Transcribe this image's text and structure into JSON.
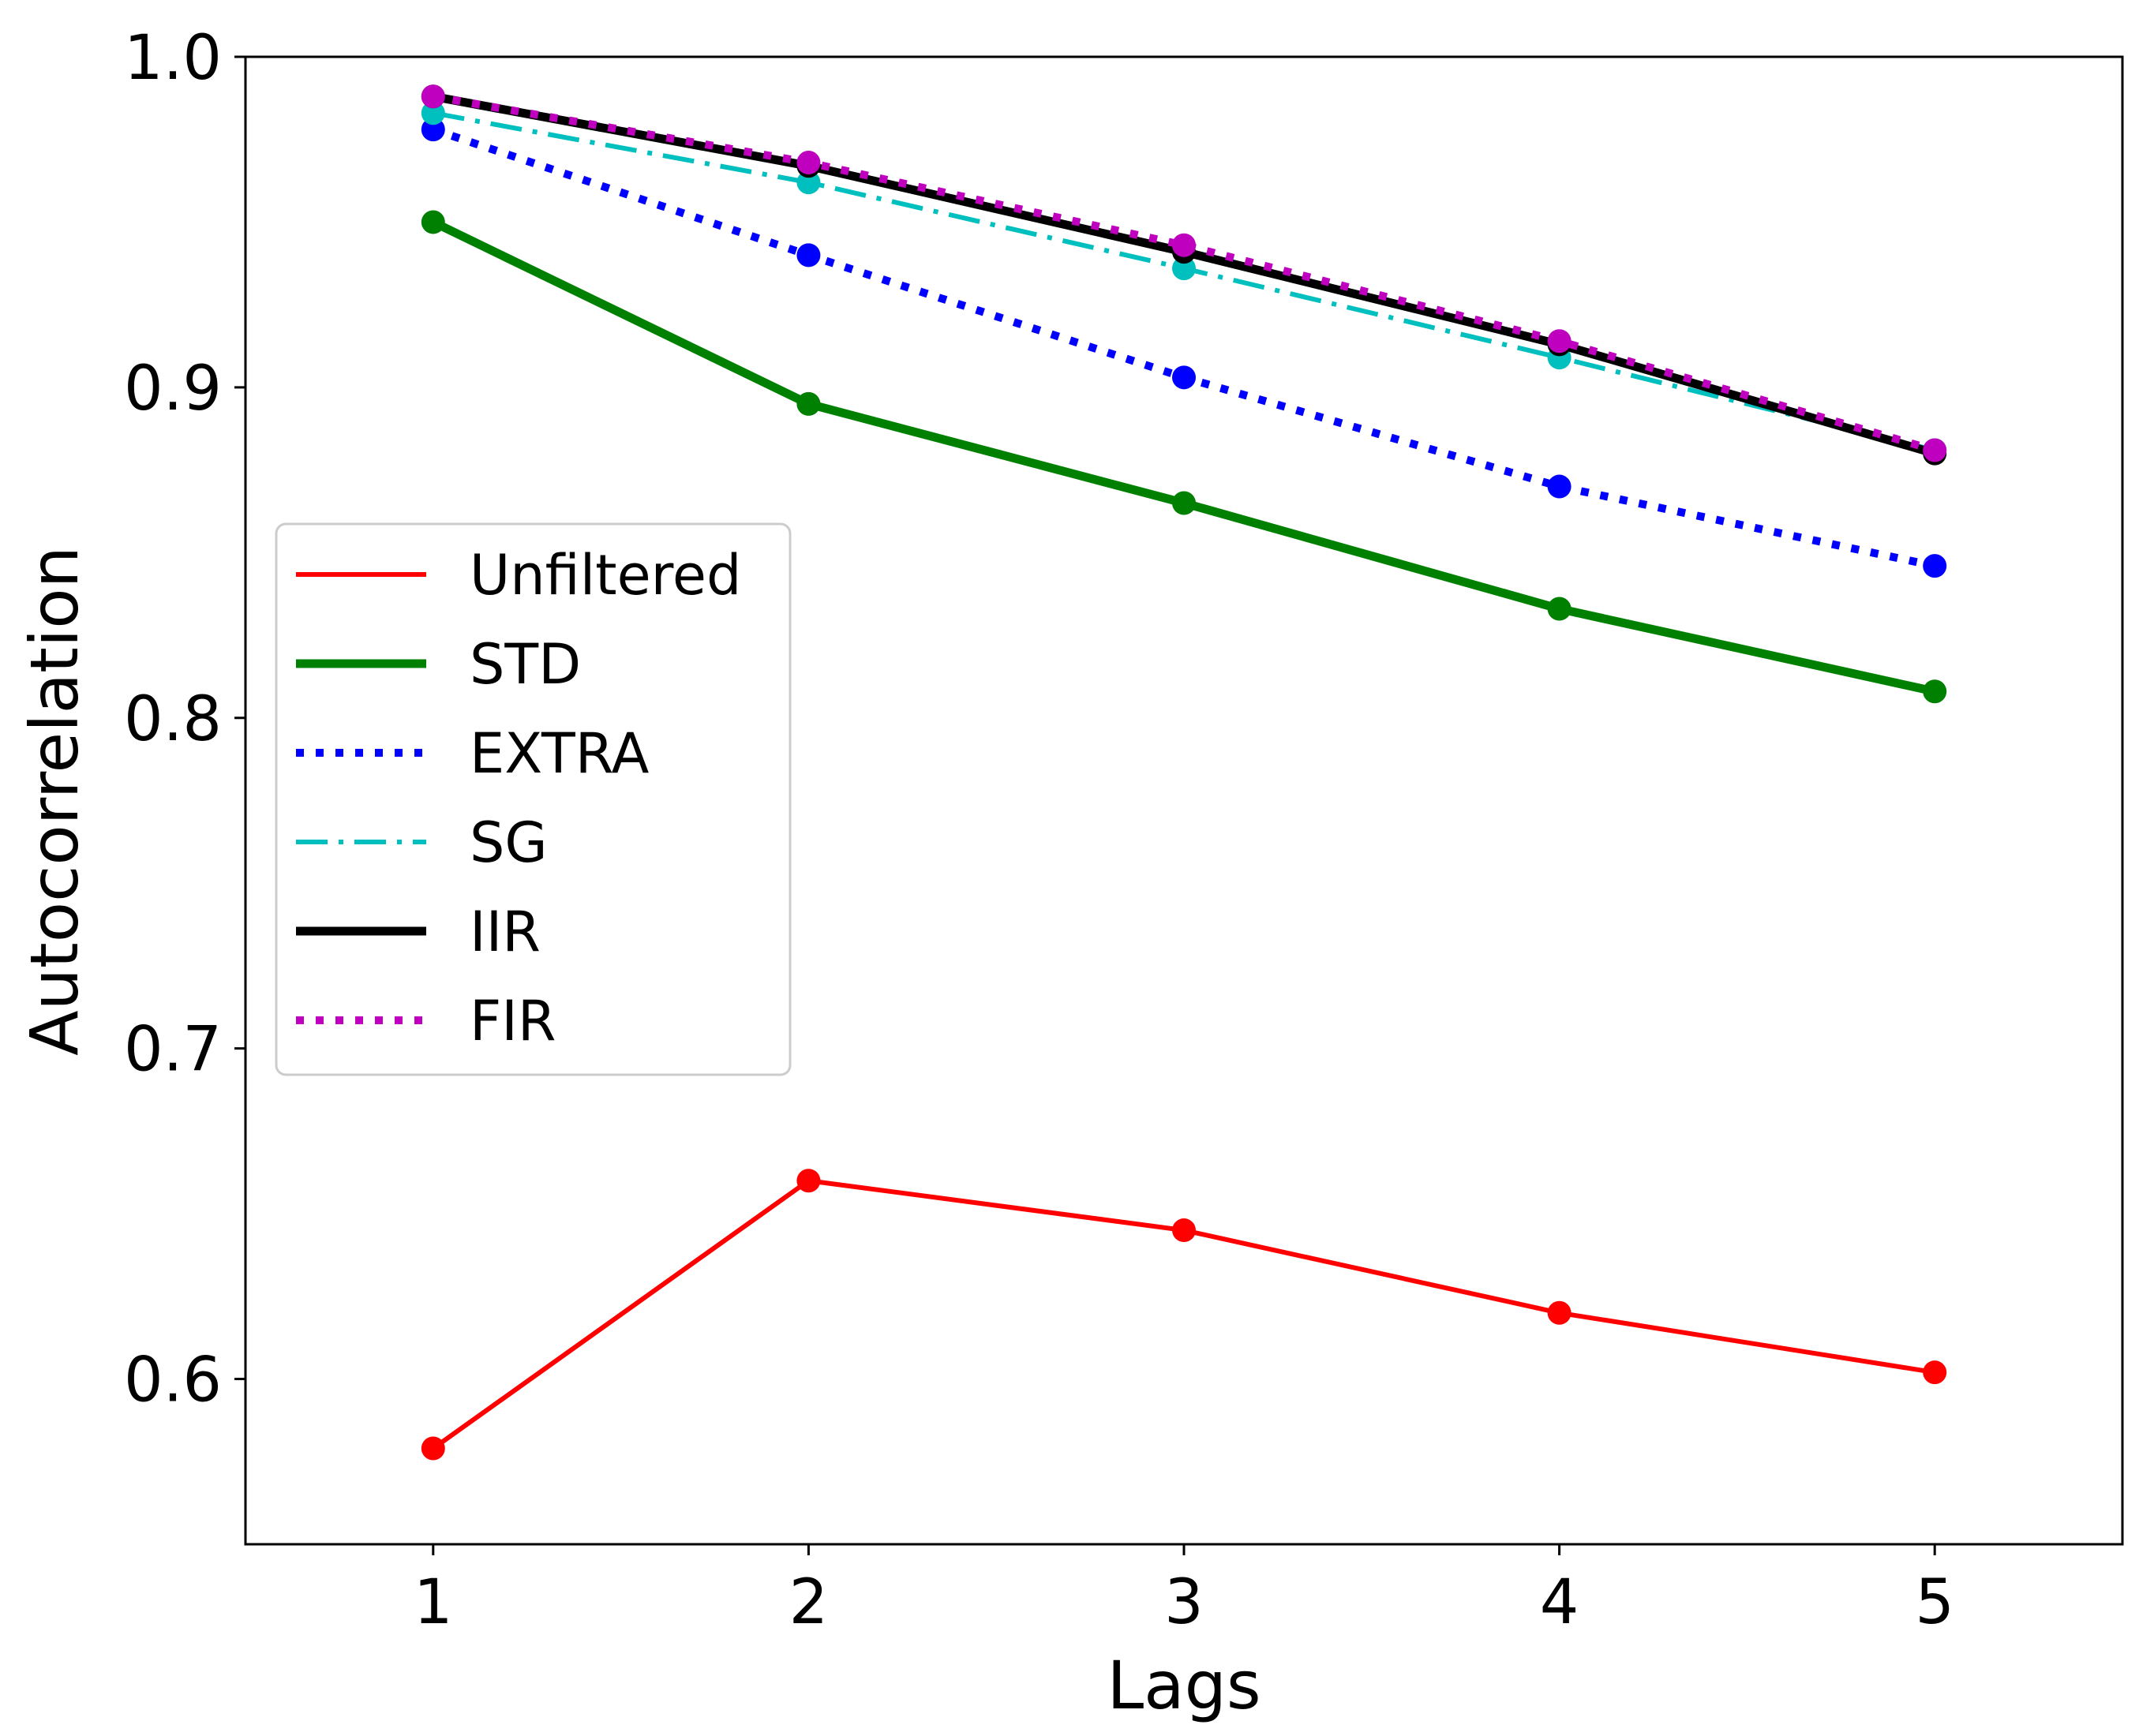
{
  "chart_data": {
    "type": "line",
    "title": "",
    "xlabel": "Lags",
    "ylabel": "Autocorrelation",
    "x": [
      1,
      2,
      3,
      4,
      5
    ],
    "xlim": [
      0.5,
      5.5
    ],
    "ylim": [
      0.55,
      1.0
    ],
    "xticks": [
      "1",
      "2",
      "3",
      "4",
      "5"
    ],
    "yticks": [
      "0.6",
      "0.7",
      "0.8",
      "0.9",
      "1.0"
    ],
    "ytick_values": [
      0.6,
      0.7,
      0.8,
      0.9,
      1.0
    ],
    "grid": false,
    "legend_position": "center-left",
    "series": [
      {
        "name": "Unfiltered",
        "color": "#ff0000",
        "style": "solid",
        "values": [
          0.579,
          0.66,
          0.645,
          0.62,
          0.602
        ]
      },
      {
        "name": "STD",
        "color": "#008000",
        "style": "solid-thick",
        "values": [
          0.95,
          0.895,
          0.865,
          0.833,
          0.808
        ]
      },
      {
        "name": "EXTRA",
        "color": "#0000ff",
        "style": "dotted",
        "values": [
          0.978,
          0.94,
          0.903,
          0.87,
          0.846
        ]
      },
      {
        "name": "SG",
        "color": "#00bfbf",
        "style": "dashdot",
        "values": [
          0.983,
          0.962,
          0.936,
          0.909,
          0.881
        ]
      },
      {
        "name": "IIR",
        "color": "#000000",
        "style": "solid-thick",
        "values": [
          0.988,
          0.967,
          0.941,
          0.913,
          0.88
        ]
      },
      {
        "name": "FIR",
        "color": "#bf00bf",
        "style": "dotted",
        "values": [
          0.988,
          0.968,
          0.943,
          0.914,
          0.881
        ]
      }
    ]
  }
}
